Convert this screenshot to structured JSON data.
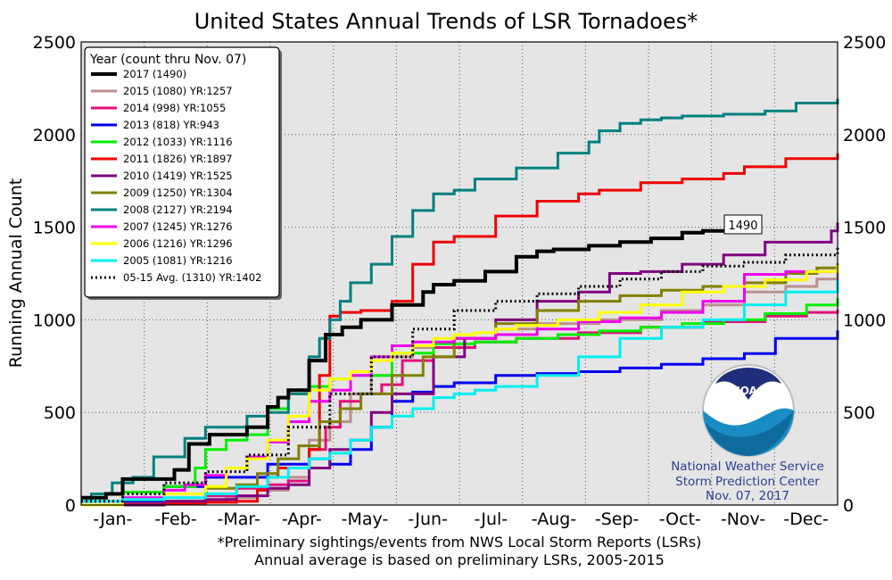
{
  "chart_data": {
    "type": "line",
    "title": "United States Annual Trends of LSR Tornadoes*",
    "ylabel": "Running Annual Count",
    "ylim": [
      0,
      2500
    ],
    "yticks": [
      0,
      500,
      1000,
      1500,
      2000,
      2500
    ],
    "xlim": [
      0,
      365
    ],
    "months": [
      "-Jan-",
      "-Feb-",
      "-Mar-",
      "-Apr-",
      "-May-",
      "-Jun-",
      "-Jul-",
      "-Aug-",
      "-Sep-",
      "-Oct-",
      "-Nov-",
      "-Dec-"
    ],
    "grid": true,
    "legend_title": "Year (count thru Nov. 07)",
    "legend_position": "top-left",
    "annotation": "1490",
    "footnote": [
      "*Preliminary sightings/events from NWS Local Storm Reports (LSRs)",
      "Annual average is based on preliminary LSRs, 2005-2015"
    ],
    "series": [
      {
        "name": "2017 (1490)",
        "color": "#000000",
        "style": "solid",
        "width": 4,
        "x": [
          0,
          12,
          20,
          45,
          52,
          62,
          80,
          90,
          95,
          100,
          110,
          118,
          126,
          135,
          150,
          165,
          170,
          180,
          195,
          210,
          220,
          228,
          245,
          260,
          275,
          290,
          300,
          311
        ],
        "y": [
          40,
          60,
          140,
          190,
          330,
          380,
          420,
          530,
          580,
          620,
          780,
          920,
          960,
          1000,
          1080,
          1150,
          1190,
          1210,
          1260,
          1340,
          1370,
          1380,
          1400,
          1420,
          1440,
          1470,
          1480,
          1490
        ]
      },
      {
        "name": "2015 (1080) YR:1257",
        "color": "#bc8f8f",
        "style": "solid",
        "width": 3,
        "x": [
          0,
          40,
          55,
          70,
          85,
          100,
          110,
          120,
          130,
          140,
          150,
          160,
          180,
          200,
          220,
          250,
          280,
          300,
          320,
          340,
          355,
          365
        ],
        "y": [
          0,
          10,
          20,
          40,
          80,
          150,
          350,
          450,
          600,
          700,
          800,
          850,
          900,
          950,
          980,
          1000,
          1050,
          1080,
          1150,
          1180,
          1220,
          1257
        ]
      },
      {
        "name": "2014 (998) YR:1055",
        "color": "#e0107a",
        "style": "solid",
        "width": 3,
        "x": [
          0,
          40,
          60,
          75,
          90,
          100,
          110,
          118,
          125,
          135,
          145,
          155,
          170,
          190,
          210,
          240,
          270,
          300,
          330,
          350,
          365
        ],
        "y": [
          0,
          20,
          50,
          90,
          110,
          130,
          300,
          420,
          560,
          600,
          650,
          780,
          850,
          880,
          900,
          930,
          960,
          990,
          1020,
          1040,
          1055
        ]
      },
      {
        "name": "2013 (818) YR:943",
        "color": "#0000ee",
        "style": "solid",
        "width": 3,
        "x": [
          0,
          20,
          40,
          60,
          90,
          110,
          120,
          130,
          140,
          150,
          160,
          170,
          180,
          200,
          220,
          240,
          260,
          280,
          300,
          320,
          335,
          365
        ],
        "y": [
          0,
          20,
          100,
          150,
          220,
          250,
          220,
          300,
          420,
          560,
          610,
          640,
          660,
          700,
          710,
          720,
          740,
          760,
          790,
          818,
          900,
          943
        ]
      },
      {
        "name": "2012 (1033) YR:1116",
        "color": "#00ee00",
        "style": "solid",
        "width": 3,
        "x": [
          0,
          20,
          40,
          55,
          60,
          70,
          80,
          90,
          100,
          110,
          120,
          130,
          150,
          170,
          190,
          210,
          230,
          250,
          270,
          290,
          310,
          330,
          350,
          365
        ],
        "y": [
          0,
          70,
          100,
          200,
          300,
          350,
          380,
          520,
          600,
          640,
          680,
          700,
          820,
          870,
          880,
          900,
          920,
          940,
          960,
          980,
          1000,
          1033,
          1080,
          1116
        ]
      },
      {
        "name": "2011 (1826) YR:1897",
        "color": "#ee0000",
        "style": "solid",
        "width": 3,
        "x": [
          0,
          20,
          40,
          60,
          75,
          85,
          90,
          95,
          110,
          115,
          120,
          125,
          135,
          150,
          160,
          170,
          180,
          200,
          220,
          240,
          250,
          270,
          290,
          310,
          320,
          340,
          365
        ],
        "y": [
          0,
          5,
          10,
          15,
          20,
          80,
          150,
          200,
          300,
          700,
          1020,
          1040,
          1050,
          1100,
          1300,
          1420,
          1450,
          1560,
          1640,
          1680,
          1700,
          1740,
          1760,
          1790,
          1826,
          1870,
          1897
        ]
      },
      {
        "name": "2010 (1419) YR:1525",
        "color": "#800080",
        "style": "solid",
        "width": 3,
        "x": [
          0,
          40,
          60,
          75,
          90,
          100,
          110,
          120,
          130,
          140,
          150,
          170,
          185,
          200,
          220,
          240,
          255,
          270,
          290,
          310,
          330,
          362,
          365
        ],
        "y": [
          0,
          20,
          30,
          50,
          90,
          110,
          200,
          300,
          350,
          500,
          600,
          800,
          900,
          1000,
          1100,
          1150,
          1250,
          1260,
          1300,
          1350,
          1419,
          1480,
          1525
        ]
      },
      {
        "name": "2009 (1250) YR:1304",
        "color": "#808000",
        "style": "solid",
        "width": 3,
        "x": [
          0,
          20,
          40,
          60,
          75,
          85,
          95,
          105,
          115,
          125,
          135,
          150,
          165,
          180,
          200,
          220,
          240,
          260,
          280,
          300,
          320,
          340,
          355,
          365
        ],
        "y": [
          0,
          30,
          60,
          90,
          110,
          170,
          250,
          320,
          450,
          520,
          600,
          700,
          800,
          900,
          980,
          1050,
          1100,
          1130,
          1160,
          1180,
          1200,
          1250,
          1280,
          1304
        ]
      },
      {
        "name": "2008 (2127) YR:2194",
        "color": "#008080",
        "style": "solid",
        "width": 3,
        "x": [
          0,
          5,
          15,
          25,
          35,
          50,
          60,
          80,
          90,
          100,
          110,
          115,
          120,
          125,
          130,
          140,
          150,
          160,
          170,
          180,
          190,
          210,
          230,
          245,
          250,
          260,
          270,
          280,
          290,
          310,
          330,
          345,
          365
        ],
        "y": [
          20,
          60,
          120,
          150,
          260,
          360,
          420,
          480,
          500,
          600,
          800,
          900,
          1000,
          1100,
          1200,
          1300,
          1450,
          1590,
          1680,
          1700,
          1760,
          1820,
          1900,
          1960,
          2020,
          2060,
          2080,
          2090,
          2100,
          2110,
          2127,
          2170,
          2194
        ]
      },
      {
        "name": "2007 (1245) YR:1276",
        "color": "#ee00ee",
        "style": "solid",
        "width": 3,
        "x": [
          0,
          20,
          40,
          50,
          60,
          70,
          80,
          90,
          100,
          110,
          120,
          130,
          140,
          150,
          160,
          180,
          200,
          220,
          240,
          260,
          280,
          300,
          320,
          340,
          365
        ],
        "y": [
          0,
          40,
          80,
          110,
          160,
          200,
          260,
          340,
          450,
          560,
          620,
          700,
          800,
          860,
          880,
          900,
          920,
          950,
          990,
          1010,
          1040,
          1100,
          1245,
          1260,
          1276
        ]
      },
      {
        "name": "2006 (1216) YR:1296",
        "color": "#ffff00",
        "style": "solid",
        "width": 3,
        "x": [
          0,
          20,
          40,
          60,
          70,
          80,
          90,
          100,
          110,
          120,
          130,
          140,
          150,
          160,
          170,
          180,
          190,
          200,
          210,
          230,
          250,
          270,
          290,
          310,
          330,
          350,
          365
        ],
        "y": [
          0,
          30,
          60,
          100,
          200,
          250,
          350,
          480,
          620,
          680,
          720,
          780,
          820,
          860,
          900,
          920,
          930,
          950,
          970,
          1000,
          1040,
          1080,
          1150,
          1180,
          1216,
          1260,
          1296
        ]
      },
      {
        "name": "2005 (1081) YR:1216",
        "color": "#00eeee",
        "style": "solid",
        "width": 3,
        "x": [
          0,
          20,
          40,
          60,
          75,
          90,
          100,
          110,
          120,
          130,
          140,
          150,
          160,
          170,
          180,
          190,
          200,
          220,
          240,
          260,
          280,
          300,
          320,
          340,
          365
        ],
        "y": [
          20,
          30,
          40,
          60,
          100,
          150,
          200,
          250,
          280,
          350,
          420,
          480,
          520,
          580,
          600,
          620,
          640,
          700,
          800,
          900,
          960,
          1000,
          1081,
          1150,
          1216
        ]
      },
      {
        "name": "05-15 Avg. (1310) YR:1402",
        "color": "#000000",
        "style": "dotted",
        "width": 3,
        "x": [
          0,
          20,
          40,
          60,
          80,
          100,
          120,
          140,
          160,
          180,
          200,
          220,
          240,
          260,
          280,
          300,
          320,
          340,
          365
        ],
        "y": [
          20,
          60,
          120,
          180,
          270,
          420,
          600,
          800,
          950,
          1050,
          1100,
          1140,
          1180,
          1220,
          1260,
          1290,
          1310,
          1350,
          1402
        ]
      }
    ]
  },
  "noaa": {
    "logo_text": "NOAA",
    "lines": [
      "National Weather Service",
      "Storm Prediction Center",
      "Nov. 07, 2017"
    ],
    "color": "#2a3f8f"
  }
}
